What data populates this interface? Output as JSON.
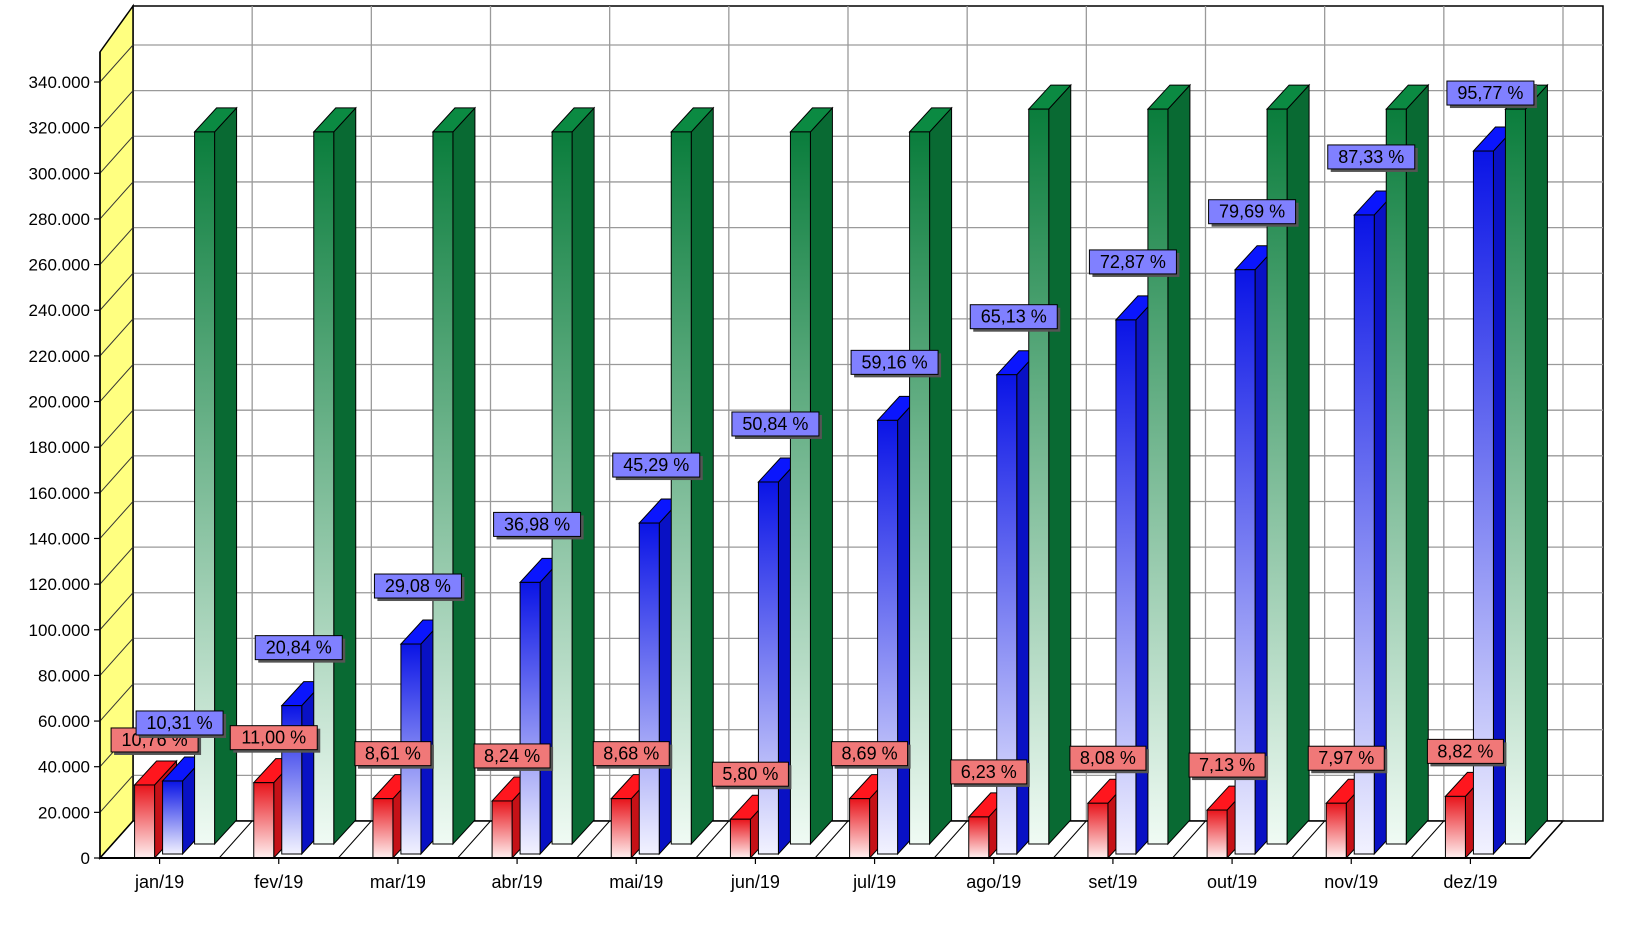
{
  "chart_data": {
    "type": "bar",
    "title": "",
    "xlabel": "",
    "ylabel": "",
    "ylim": [
      0,
      340000
    ],
    "y_ticks": [
      "0",
      "20.000",
      "40.000",
      "60.000",
      "80.000",
      "100.000",
      "120.000",
      "140.000",
      "160.000",
      "180.000",
      "200.000",
      "220.000",
      "240.000",
      "260.000",
      "280.000",
      "300.000",
      "320.000",
      "340.000"
    ],
    "grid": true,
    "legend": "none",
    "style": "3d",
    "categories": [
      "jan/19",
      "fev/19",
      "mar/19",
      "abr/19",
      "mai/19",
      "jun/19",
      "jul/19",
      "ago/19",
      "set/19",
      "out/19",
      "nov/19",
      "dez/19"
    ],
    "series": [
      {
        "color": "#e8141b",
        "values": [
          32000,
          33000,
          26000,
          25000,
          26000,
          17000,
          26000,
          18000,
          24000,
          21000,
          24000,
          27000
        ],
        "labels": [
          "10,76 %",
          "11,00 %",
          "8,61 %",
          "8,24 %",
          "8,68 %",
          "5,80 %",
          "8,69 %",
          "6,23 %",
          "8,08 %",
          "7,13 %",
          "7,97 %",
          "8,82 %"
        ]
      },
      {
        "color": "#0a14e6",
        "values": [
          32000,
          65000,
          92000,
          119000,
          145000,
          163000,
          190000,
          210000,
          234000,
          256000,
          280000,
          308000
        ],
        "labels": [
          "10,31 %",
          "20,84 %",
          "29,08 %",
          "36,98 %",
          "45,29 %",
          "50,84 %",
          "59,16 %",
          "65,13 %",
          "72,87 %",
          "79,69 %",
          "87,33 %",
          "95,77 %"
        ]
      },
      {
        "color": "#0a7d3c",
        "values": [
          312000,
          312000,
          312000,
          312000,
          312000,
          312000,
          312000,
          322000,
          322000,
          322000,
          322000,
          322000
        ]
      }
    ]
  }
}
